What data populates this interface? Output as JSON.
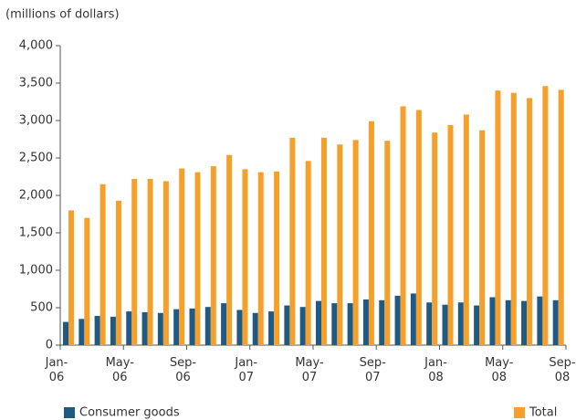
{
  "chart_data": {
    "type": "bar",
    "y_label": "(millions of dollars)",
    "categories": [
      "Jan-06",
      null,
      null,
      null,
      "May-06",
      null,
      null,
      null,
      "Sep-06",
      null,
      null,
      null,
      "Jan-07",
      null,
      null,
      null,
      "May-07",
      null,
      null,
      null,
      "Sep-07",
      null,
      null,
      null,
      "Jan-08",
      null,
      null,
      null,
      "May-08",
      null,
      null,
      null,
      "Sep-08"
    ],
    "series": [
      {
        "name": "Consumer goods",
        "color": "#1f5a85",
        "values": [
          310,
          350,
          390,
          380,
          450,
          440,
          430,
          480,
          490,
          510,
          560,
          470,
          430,
          450,
          530,
          510,
          590,
          560,
          560,
          610,
          600,
          660,
          690,
          570,
          540,
          570,
          530,
          640,
          600,
          590,
          650,
          600,
          null
        ]
      },
      {
        "name": "Total",
        "color": "#f5a02a",
        "values": [
          1800,
          1700,
          2150,
          1930,
          2220,
          2220,
          2190,
          2360,
          2310,
          2390,
          2540,
          2350,
          2310,
          2320,
          2770,
          2460,
          2770,
          2680,
          2740,
          2990,
          2730,
          3190,
          3140,
          2840,
          2940,
          3080,
          2870,
          3400,
          3370,
          3300,
          3460,
          3410,
          null
        ]
      }
    ],
    "ylim": [
      0,
      4000
    ],
    "yticks": [
      0,
      500,
      {
        "value": 1000,
        "label": "1,000"
      },
      {
        "value": 1500,
        "label": "1,500"
      },
      {
        "value": 2000,
        "label": "2,000"
      },
      {
        "value": 2500,
        "label": "2,500"
      },
      {
        "value": 3000,
        "label": "3,000"
      },
      {
        "value": 3500,
        "label": "3,500"
      },
      {
        "value": 4000,
        "label": "4,000"
      }
    ],
    "grid": false
  }
}
